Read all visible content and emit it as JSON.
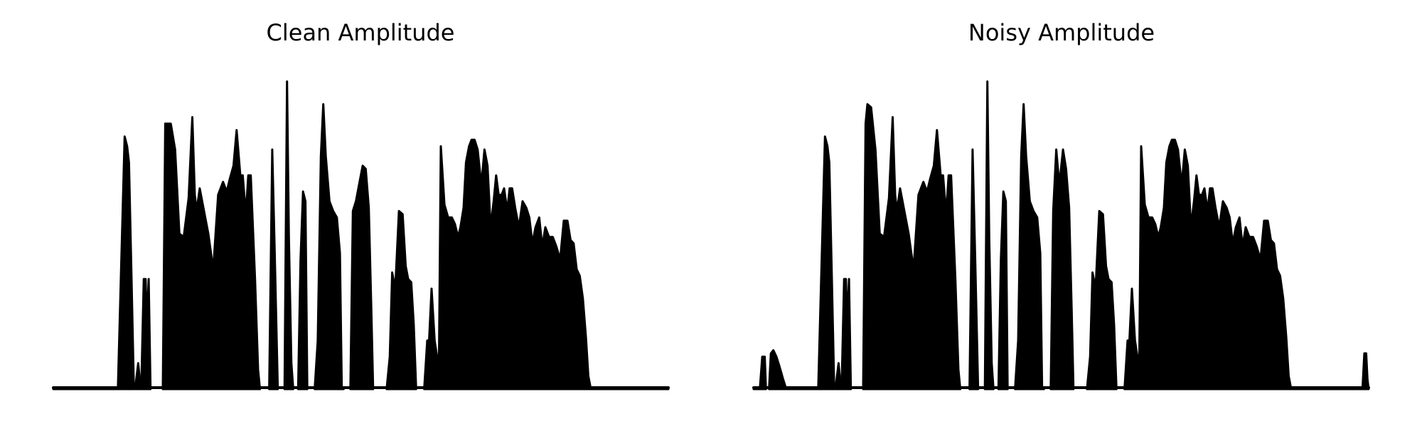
{
  "chart_data": [
    {
      "type": "area",
      "title": "Clean Amplitude",
      "xlabel": "",
      "ylabel": "",
      "axes_visible": false,
      "grid": false,
      "color": "#000000",
      "x_range": [
        0,
        100
      ],
      "ylim": [
        0,
        1.0
      ],
      "segments": [
        {
          "x": [
            0,
            10.5
          ],
          "y": [
            0.0,
            0.0
          ]
        },
        {
          "x": [
            10.5,
            11.2,
            11.6,
            12.0,
            12.3,
            12.7,
            13.1
          ],
          "y": [
            0.0,
            0.5,
            0.78,
            0.75,
            0.7,
            0.35,
            0.0
          ]
        },
        {
          "x": [
            13.3,
            13.8,
            14.2
          ],
          "y": [
            0.0,
            0.08,
            0.0
          ]
        },
        {
          "x": [
            14.3,
            14.7,
            15.0,
            15.2,
            15.5,
            15.8
          ],
          "y": [
            0.0,
            0.34,
            0.34,
            0.2,
            0.34,
            0.0
          ]
        },
        {
          "x": [
            17.8,
            18.2,
            18.5,
            19.1,
            19.8,
            20.5,
            21.2,
            22.0,
            22.6,
            23.0,
            23.3,
            23.8,
            24.4,
            25.2,
            26.0,
            26.8,
            27.6,
            28.2,
            28.7,
            29.3,
            29.8,
            30.4,
            30.8,
            31.3,
            31.7,
            32.1,
            32.8,
            33.3,
            33.6
          ],
          "y": [
            0.0,
            0.82,
            0.82,
            0.82,
            0.74,
            0.48,
            0.47,
            0.59,
            0.84,
            0.6,
            0.55,
            0.62,
            0.56,
            0.48,
            0.37,
            0.6,
            0.64,
            0.61,
            0.65,
            0.69,
            0.8,
            0.66,
            0.66,
            0.54,
            0.66,
            0.66,
            0.34,
            0.06,
            0.0
          ]
        },
        {
          "x": [
            35.1,
            35.6,
            36.0,
            36.5
          ],
          "y": [
            0.0,
            0.74,
            0.42,
            0.0
          ]
        },
        {
          "x": [
            37.6,
            38.0,
            38.3,
            38.7,
            39.0
          ],
          "y": [
            0.0,
            0.95,
            0.47,
            0.08,
            0.0
          ]
        },
        {
          "x": [
            39.8,
            40.2,
            40.6,
            41.0,
            41.3
          ],
          "y": [
            0.0,
            0.4,
            0.61,
            0.58,
            0.0
          ]
        },
        {
          "x": [
            42.5,
            43.0,
            43.5,
            43.9,
            44.3,
            44.9,
            45.5,
            46.1,
            46.6,
            46.9,
            47.2
          ],
          "y": [
            0.0,
            0.15,
            0.72,
            0.88,
            0.72,
            0.58,
            0.55,
            0.53,
            0.42,
            0.0,
            0.0
          ]
        },
        {
          "x": [
            48.3,
            48.7,
            49.2,
            49.7,
            50.3,
            50.8,
            51.3,
            51.7,
            52.0
          ],
          "y": [
            0.0,
            0.55,
            0.58,
            0.63,
            0.69,
            0.68,
            0.56,
            0.25,
            0.0
          ]
        },
        {
          "x": [
            54.2,
            54.7,
            55.1,
            55.6,
            56.2,
            56.8,
            57.3,
            57.7,
            58.2,
            58.6,
            59.0
          ],
          "y": [
            0.0,
            0.1,
            0.36,
            0.31,
            0.55,
            0.54,
            0.38,
            0.34,
            0.33,
            0.2,
            0.0
          ]
        },
        {
          "x": [
            60.3,
            60.8,
            61.1,
            61.5,
            62.0,
            62.4,
            62.7
          ],
          "y": [
            0.0,
            0.15,
            0.15,
            0.31,
            0.15,
            0.1,
            0.09
          ]
        },
        {
          "x": [
            62.7,
            63.0,
            63.6,
            64.2,
            64.8,
            65.3,
            65.8,
            66.2,
            66.7,
            67.1,
            67.6,
            68.0,
            68.5,
            69.0,
            69.6,
            70.1,
            70.6,
            71.1,
            71.6,
            72.0,
            72.4,
            72.9,
            73.3,
            73.8,
            74.2,
            74.6,
            75.1,
            75.7,
            76.3,
            76.9,
            77.4,
            77.9,
            78.4,
            79.0,
            79.5,
            80.0,
            80.6,
            81.2,
            81.8,
            82.4,
            83.0,
            83.6,
            84.1,
            84.6,
            85.1,
            85.6,
            86.1,
            86.6,
            87.0,
            87.4
          ],
          "y": [
            0.09,
            0.75,
            0.57,
            0.53,
            0.53,
            0.51,
            0.47,
            0.5,
            0.56,
            0.7,
            0.75,
            0.77,
            0.77,
            0.74,
            0.63,
            0.74,
            0.69,
            0.5,
            0.58,
            0.66,
            0.6,
            0.6,
            0.62,
            0.55,
            0.62,
            0.62,
            0.56,
            0.5,
            0.58,
            0.56,
            0.53,
            0.45,
            0.5,
            0.53,
            0.44,
            0.5,
            0.47,
            0.47,
            0.44,
            0.4,
            0.52,
            0.52,
            0.46,
            0.45,
            0.37,
            0.35,
            0.28,
            0.16,
            0.04,
            0.0
          ]
        },
        {
          "x": [
            87.4,
            100
          ],
          "y": [
            0.0,
            0.0
          ]
        }
      ]
    },
    {
      "type": "area",
      "title": "Noisy Amplitude",
      "xlabel": "",
      "ylabel": "",
      "axes_visible": false,
      "grid": false,
      "color": "#000000",
      "x_range": [
        0,
        100
      ],
      "ylim": [
        0,
        1.0
      ],
      "segments": [
        {
          "x": [
            0,
            1.0,
            1.4,
            1.8,
            2.0
          ],
          "y": [
            0.0,
            0.0,
            0.1,
            0.1,
            0.0
          ]
        },
        {
          "x": [
            2.5,
            2.8,
            3.2,
            3.7,
            4.2,
            4.8,
            5.3
          ],
          "y": [
            0.0,
            0.11,
            0.12,
            0.1,
            0.07,
            0.03,
            0.0
          ]
        },
        {
          "x": [
            5.3,
            10.5
          ],
          "y": [
            0.0,
            0.0
          ]
        },
        {
          "x": [
            10.5,
            11.2,
            11.6,
            12.0,
            12.3,
            12.7,
            13.1
          ],
          "y": [
            0.0,
            0.5,
            0.78,
            0.75,
            0.7,
            0.35,
            0.0
          ]
        },
        {
          "x": [
            13.3,
            13.8,
            14.2
          ],
          "y": [
            0.0,
            0.08,
            0.0
          ]
        },
        {
          "x": [
            14.3,
            14.7,
            15.0,
            15.2,
            15.5,
            15.8
          ],
          "y": [
            0.0,
            0.34,
            0.34,
            0.2,
            0.34,
            0.0
          ]
        },
        {
          "x": [
            17.8,
            18.2,
            18.5,
            19.1,
            19.8,
            20.5,
            21.2,
            22.0,
            22.6,
            23.0,
            23.3,
            23.8,
            24.4,
            25.2,
            26.0,
            26.8,
            27.6,
            28.2,
            28.7,
            29.3,
            29.8,
            30.4,
            30.8,
            31.3,
            31.7,
            32.1,
            32.8,
            33.3,
            33.6
          ],
          "y": [
            0.0,
            0.82,
            0.88,
            0.87,
            0.74,
            0.48,
            0.47,
            0.59,
            0.84,
            0.6,
            0.55,
            0.62,
            0.56,
            0.48,
            0.37,
            0.6,
            0.64,
            0.61,
            0.65,
            0.69,
            0.8,
            0.66,
            0.66,
            0.54,
            0.66,
            0.66,
            0.34,
            0.06,
            0.0
          ]
        },
        {
          "x": [
            35.1,
            35.6,
            36.0,
            36.5
          ],
          "y": [
            0.0,
            0.74,
            0.42,
            0.0
          ]
        },
        {
          "x": [
            37.6,
            38.0,
            38.3,
            38.7,
            39.0
          ],
          "y": [
            0.0,
            0.95,
            0.47,
            0.08,
            0.0
          ]
        },
        {
          "x": [
            39.8,
            40.2,
            40.6,
            41.0,
            41.3
          ],
          "y": [
            0.0,
            0.4,
            0.61,
            0.58,
            0.0
          ]
        },
        {
          "x": [
            42.5,
            43.0,
            43.5,
            43.9,
            44.3,
            44.9,
            45.5,
            46.1,
            46.6,
            46.9,
            47.2
          ],
          "y": [
            0.0,
            0.15,
            0.72,
            0.88,
            0.72,
            0.58,
            0.55,
            0.53,
            0.42,
            0.0,
            0.0
          ]
        },
        {
          "x": [
            48.3,
            48.7,
            49.2,
            49.7,
            50.3,
            50.8,
            51.3,
            51.7,
            52.0
          ],
          "y": [
            0.0,
            0.55,
            0.74,
            0.63,
            0.74,
            0.68,
            0.56,
            0.25,
            0.0
          ]
        },
        {
          "x": [
            54.2,
            54.7,
            55.1,
            55.6,
            56.2,
            56.8,
            57.3,
            57.7,
            58.2,
            58.6,
            59.0
          ],
          "y": [
            0.0,
            0.1,
            0.36,
            0.31,
            0.55,
            0.54,
            0.38,
            0.34,
            0.33,
            0.2,
            0.0
          ]
        },
        {
          "x": [
            60.3,
            60.8,
            61.1,
            61.5,
            62.0,
            62.4,
            62.7
          ],
          "y": [
            0.0,
            0.15,
            0.15,
            0.31,
            0.15,
            0.1,
            0.09
          ]
        },
        {
          "x": [
            62.7,
            63.0,
            63.6,
            64.2,
            64.8,
            65.3,
            65.8,
            66.2,
            66.7,
            67.1,
            67.6,
            68.0,
            68.5,
            69.0,
            69.6,
            70.1,
            70.6,
            71.1,
            71.6,
            72.0,
            72.4,
            72.9,
            73.3,
            73.8,
            74.2,
            74.6,
            75.1,
            75.7,
            76.3,
            76.9,
            77.4,
            77.9,
            78.4,
            79.0,
            79.5,
            80.0,
            80.6,
            81.2,
            81.8,
            82.4,
            83.0,
            83.6,
            84.1,
            84.6,
            85.1,
            85.6,
            86.1,
            86.6,
            87.0,
            87.4
          ],
          "y": [
            0.09,
            0.75,
            0.57,
            0.53,
            0.53,
            0.51,
            0.47,
            0.5,
            0.56,
            0.7,
            0.75,
            0.77,
            0.77,
            0.74,
            0.63,
            0.74,
            0.69,
            0.5,
            0.58,
            0.66,
            0.6,
            0.6,
            0.62,
            0.55,
            0.62,
            0.62,
            0.56,
            0.5,
            0.58,
            0.56,
            0.53,
            0.45,
            0.5,
            0.53,
            0.44,
            0.5,
            0.47,
            0.47,
            0.44,
            0.4,
            0.52,
            0.52,
            0.46,
            0.45,
            0.37,
            0.35,
            0.28,
            0.16,
            0.04,
            0.0
          ]
        },
        {
          "x": [
            87.4,
            99.0,
            99.3,
            99.6,
            99.8,
            100
          ],
          "y": [
            0.0,
            0.0,
            0.11,
            0.11,
            0.03,
            0.0
          ]
        }
      ]
    }
  ]
}
